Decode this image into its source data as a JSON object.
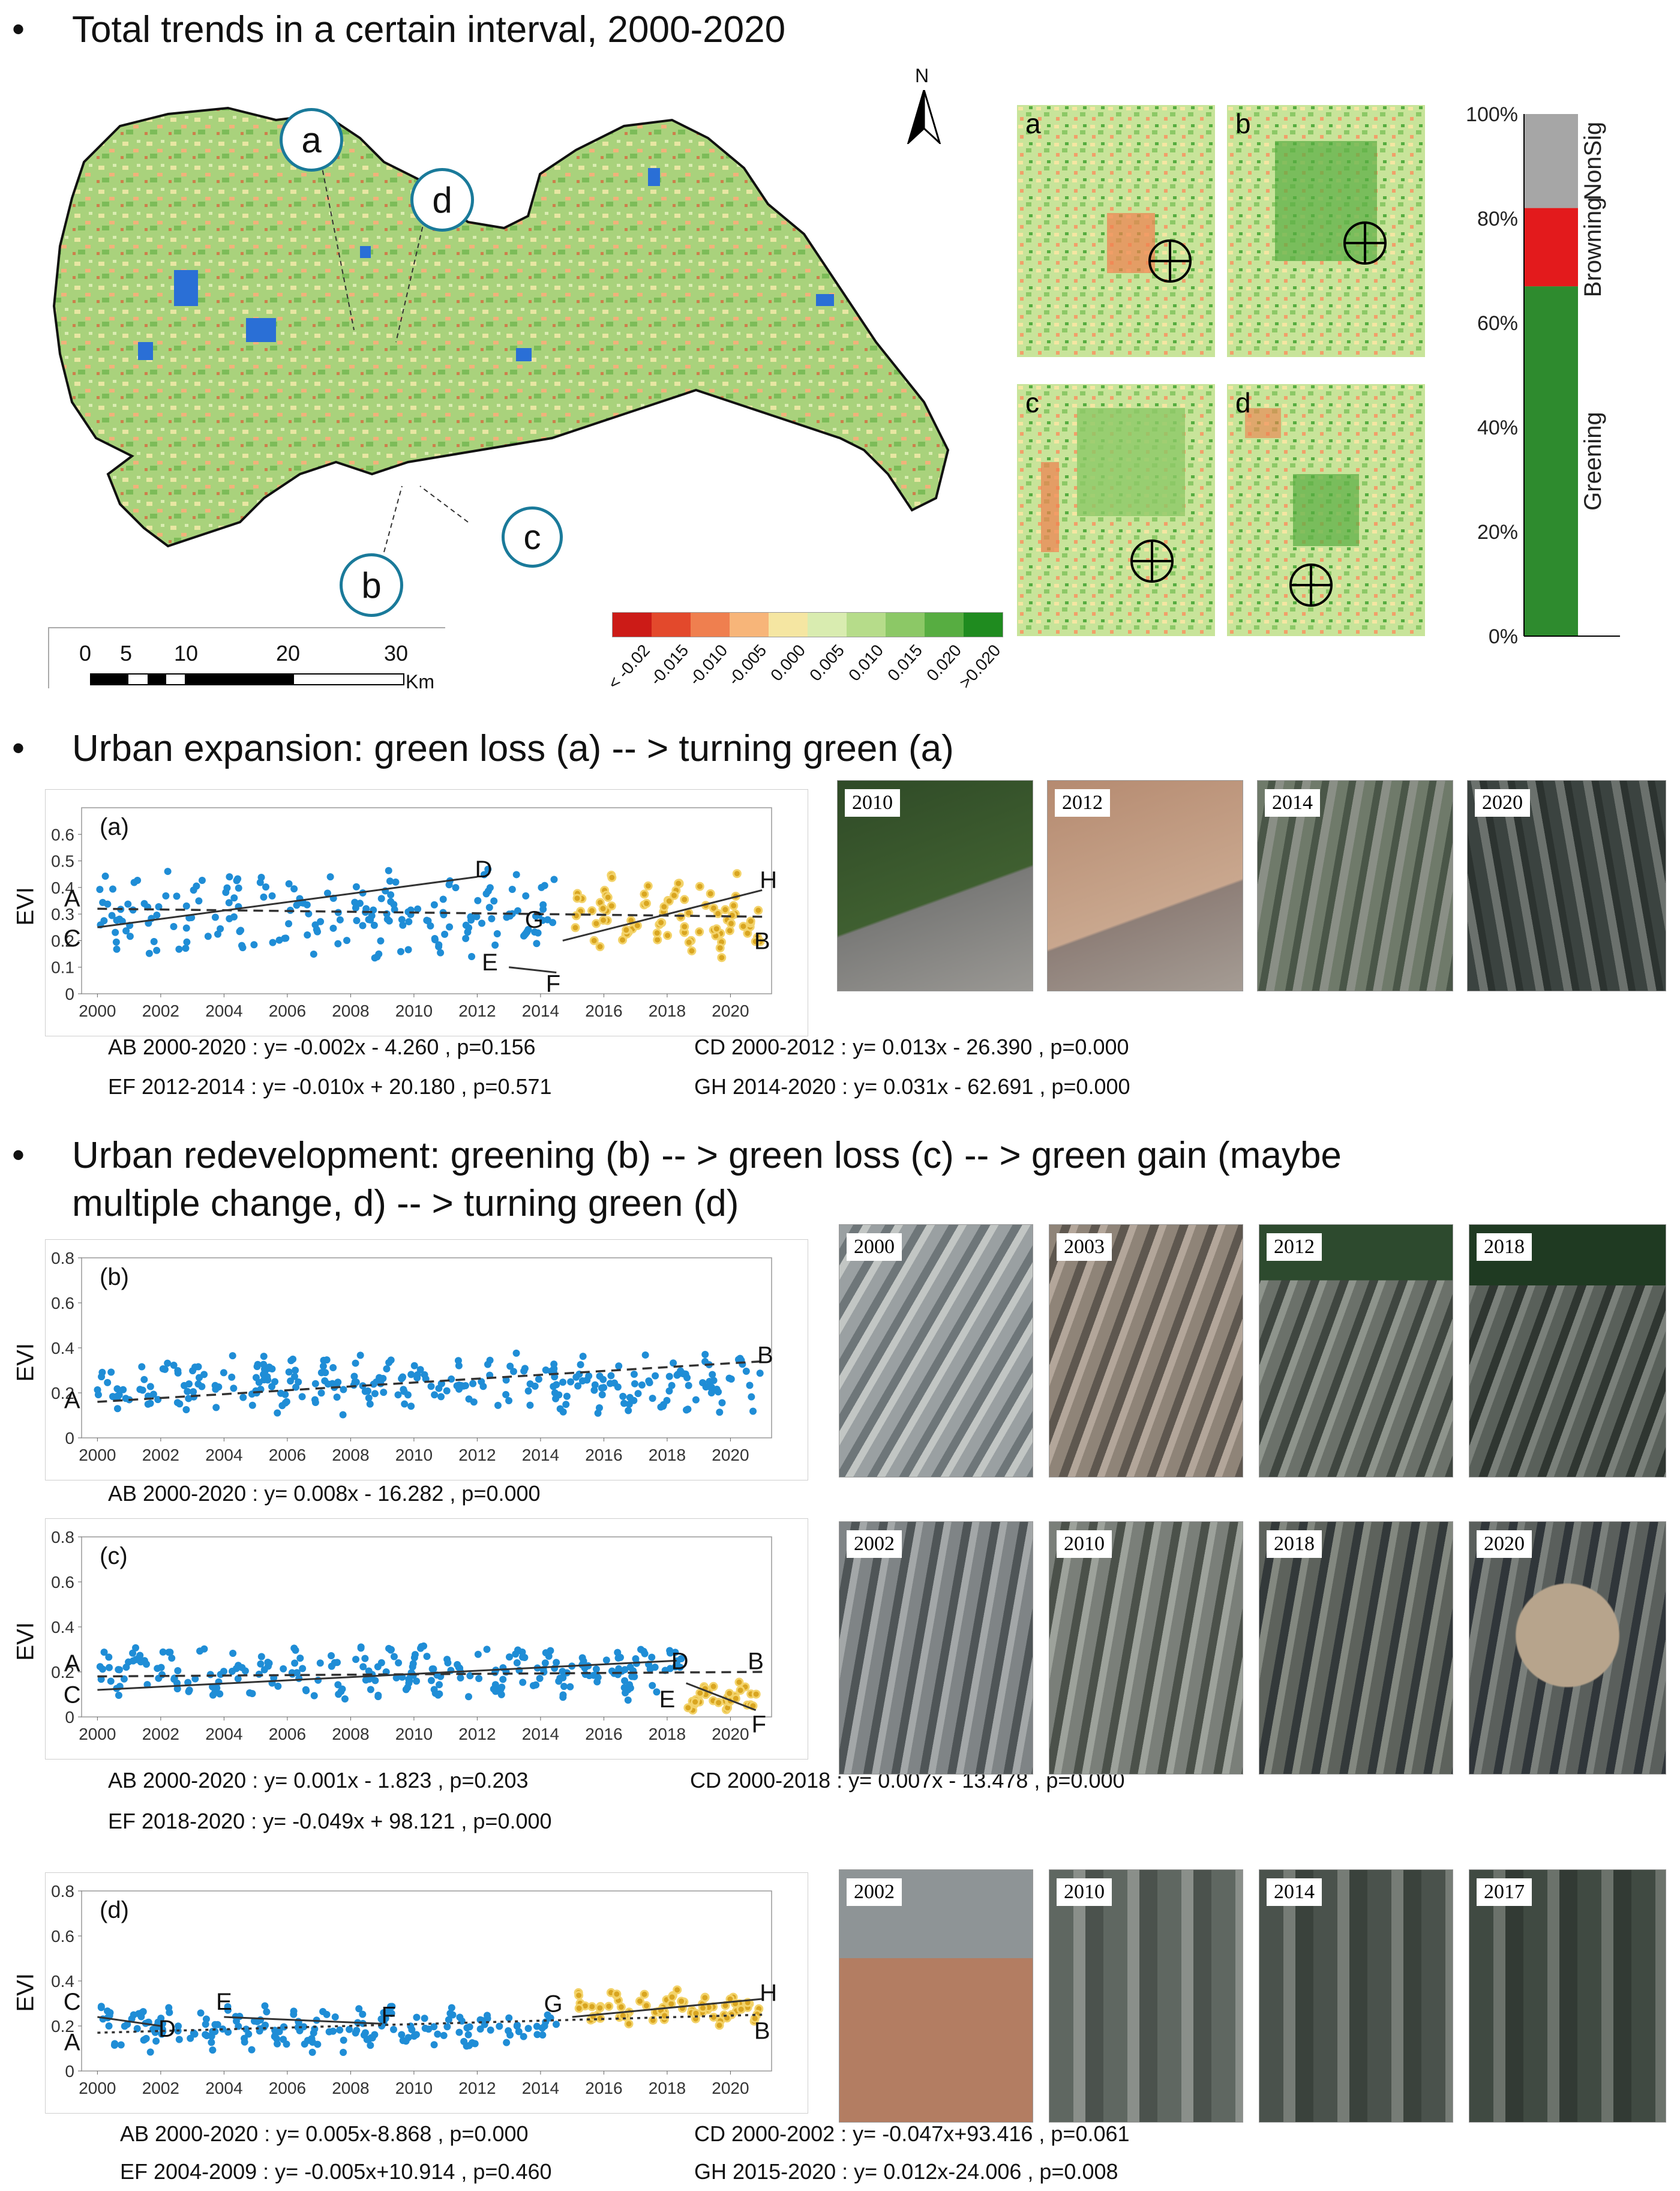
{
  "sections": {
    "s1_title": "Total trends in a certain interval, 2000-2020",
    "s2_title": "Urban expansion:  green loss (a) -- >  turning green (a)",
    "s3_title_line1": "Urban redevelopment: greening (b) -- >  green loss (c) -- >  green gain (maybe",
    "s3_title_line2": "multiple change, d) -- > turning green (d)"
  },
  "map": {
    "north": "N",
    "callouts": [
      "a",
      "d",
      "c",
      "b"
    ],
    "scale_ticks": [
      "0",
      "5",
      "10",
      "20",
      "30"
    ],
    "scale_unit": "Km",
    "zoom_labels": [
      "a",
      "b",
      "c",
      "d"
    ],
    "legend_labels": [
      "< -0.02",
      "-0.015",
      "-0.010",
      "-0.005",
      "0.000",
      "0.005",
      "0.010",
      "0.015",
      "0.020",
      ">0.020"
    ],
    "legend_colors": [
      "#cc1b17",
      "#e3492c",
      "#ef7f4f",
      "#f7b579",
      "#f5e6a2",
      "#d9ecb0",
      "#b6dc8a",
      "#8cc866",
      "#57ad41",
      "#1f8b1f"
    ]
  },
  "chart_data": [
    {
      "type": "bar",
      "stacked": true,
      "categories": [
        "Greening",
        "Browning",
        "NonSig"
      ],
      "values": [
        67,
        15,
        18
      ],
      "colors": [
        "#2e8b2e",
        "#e31a1c",
        "#a6a6a6"
      ],
      "ylim": [
        0,
        100
      ],
      "yticks": [
        "0%",
        "20%",
        "40%",
        "60%",
        "80%",
        "100%"
      ]
    },
    {
      "type": "scatter",
      "panel": "(a)",
      "ylabel": "EVI",
      "ylim": [
        0,
        0.7
      ],
      "yticks": [
        "0",
        "0.1",
        "0.2",
        "0.3",
        "0.4",
        "0.5",
        "0.6"
      ],
      "xticks": [
        "2000",
        "2002",
        "2004",
        "2006",
        "2008",
        "2010",
        "2012",
        "2014",
        "2016",
        "2018",
        "2020"
      ],
      "xlim": [
        1999.5,
        2021.3
      ],
      "lines": [
        {
          "from": "A",
          "to": "B",
          "x": [
            2000,
            2021
          ],
          "y": [
            0.32,
            0.29
          ],
          "style": "dashed"
        },
        {
          "from": "C",
          "to": "D",
          "x": [
            2000,
            2012
          ],
          "y": [
            0.25,
            0.44
          ],
          "style": "solid"
        },
        {
          "from": "E",
          "to": "F",
          "x": [
            2013,
            2014.5
          ],
          "y": [
            0.1,
            0.08
          ],
          "style": "solid"
        },
        {
          "from": "G",
          "to": "H",
          "x": [
            2014.7,
            2021
          ],
          "y": [
            0.2,
            0.39
          ],
          "style": "solid"
        }
      ],
      "point_labels": [
        {
          "text": "A",
          "x": 1999.2,
          "y": 0.36
        },
        {
          "text": "C",
          "x": 1999.2,
          "y": 0.21
        },
        {
          "text": "D",
          "x": 2012.2,
          "y": 0.47
        },
        {
          "text": "E",
          "x": 2012.4,
          "y": 0.12
        },
        {
          "text": "F",
          "x": 2014.4,
          "y": 0.04
        },
        {
          "text": "G",
          "x": 2013.8,
          "y": 0.28
        },
        {
          "text": "H",
          "x": 2021.2,
          "y": 0.43
        },
        {
          "text": "B",
          "x": 2021.0,
          "y": 0.2
        }
      ],
      "series": [
        {
          "color": "#1f8dd6",
          "x_range": [
            2000,
            2014.5
          ],
          "mean": 0.3,
          "spread": 0.13
        },
        {
          "color": "#d9a520",
          "x_range": [
            2014.7,
            2021
          ],
          "mean": 0.3,
          "spread": 0.12
        }
      ],
      "equations": [
        "AB 2000-2020 :  y= -0.002x - 4.260 ,   p=0.156",
        "CD 2000-2012 :  y=  0.013x - 26.390 , p=0.000",
        "EF 2012-2014 :  y= -0.010x + 20.180 , p=0.571",
        "GH 2014-2020 :  y=  0.031x - 62.691 , p=0.000"
      ],
      "photo_years": [
        "2010",
        "2012",
        "2014",
        "2020"
      ]
    },
    {
      "type": "scatter",
      "panel": "(b)",
      "ylabel": "EVI",
      "ylim": [
        0,
        0.8
      ],
      "yticks": [
        "0",
        "0.2",
        "0.4",
        "0.6",
        "0.8"
      ],
      "xticks": [
        "2000",
        "2002",
        "2004",
        "2006",
        "2008",
        "2010",
        "2012",
        "2014",
        "2016",
        "2018",
        "2020"
      ],
      "xlim": [
        1999.5,
        2021.3
      ],
      "lines": [
        {
          "from": "A",
          "to": "B",
          "x": [
            2000,
            2021
          ],
          "y": [
            0.16,
            0.34
          ],
          "style": "dashed"
        }
      ],
      "point_labels": [
        {
          "text": "A",
          "x": 1999.2,
          "y": 0.17
        },
        {
          "text": "B",
          "x": 2021.1,
          "y": 0.37
        }
      ],
      "series": [
        {
          "color": "#1f8dd6",
          "x_range": [
            2000,
            2021
          ],
          "mean": 0.24,
          "spread": 0.1
        }
      ],
      "equations": [
        "AB 2000-2020 :  y= 0.008x - 16.282 , p=0.000"
      ],
      "photo_years": [
        "2000",
        "2003",
        "2012",
        "2018"
      ]
    },
    {
      "type": "scatter",
      "panel": "(c)",
      "ylabel": "EVI",
      "ylim": [
        0,
        0.8
      ],
      "yticks": [
        "0",
        "0.2",
        "0.4",
        "0.6",
        "0.8"
      ],
      "xticks": [
        "2000",
        "2002",
        "2004",
        "2006",
        "2008",
        "2010",
        "2012",
        "2014",
        "2016",
        "2018",
        "2020"
      ],
      "xlim": [
        1999.5,
        2021.3
      ],
      "lines": [
        {
          "from": "A",
          "to": "B",
          "x": [
            2000,
            2021
          ],
          "y": [
            0.18,
            0.2
          ],
          "style": "dashed"
        },
        {
          "from": "C",
          "to": "D",
          "x": [
            2000,
            2018.3
          ],
          "y": [
            0.12,
            0.25
          ],
          "style": "solid"
        },
        {
          "from": "E",
          "to": "F",
          "x": [
            2018.6,
            2020.8
          ],
          "y": [
            0.15,
            0.03
          ],
          "style": "solid"
        }
      ],
      "point_labels": [
        {
          "text": "A",
          "x": 1999.2,
          "y": 0.24
        },
        {
          "text": "C",
          "x": 1999.2,
          "y": 0.1
        },
        {
          "text": "D",
          "x": 2018.4,
          "y": 0.25
        },
        {
          "text": "B",
          "x": 2020.8,
          "y": 0.25
        },
        {
          "text": "E",
          "x": 2018.0,
          "y": 0.08
        },
        {
          "text": "F",
          "x": 2020.9,
          "y": -0.03
        }
      ],
      "series": [
        {
          "color": "#1f8dd6",
          "x_range": [
            2000,
            2018.5
          ],
          "mean": 0.2,
          "spread": 0.09
        },
        {
          "color": "#d9a520",
          "x_range": [
            2018.6,
            2021
          ],
          "mean": 0.09,
          "spread": 0.05
        }
      ],
      "equations": [
        "AB 2000-2020 :  y=  0.001x - 1.823 , p=0.203",
        "CD 2000-2018 :  y= 0.007x - 13.478 , p=0.000",
        "EF 2018-2020 :  y= -0.049x + 98.121 , p=0.000"
      ],
      "photo_years": [
        "2002",
        "2010",
        "2018",
        "2020"
      ]
    },
    {
      "type": "scatter",
      "panel": "(d)",
      "ylabel": "EVI",
      "ylim": [
        0,
        0.8
      ],
      "yticks": [
        "0",
        "0.2",
        "0.4",
        "0.6",
        "0.8"
      ],
      "xticks": [
        "2000",
        "2002",
        "2004",
        "2006",
        "2008",
        "2010",
        "2012",
        "2014",
        "2016",
        "2018",
        "2020"
      ],
      "xlim": [
        1999.5,
        2021.3
      ],
      "lines": [
        {
          "from": "A",
          "to": "B",
          "x": [
            2000,
            2021
          ],
          "y": [
            0.17,
            0.25
          ],
          "style": "dotted"
        },
        {
          "from": "C",
          "to": "D",
          "x": [
            2000,
            2002
          ],
          "y": [
            0.24,
            0.2
          ],
          "style": "solid"
        },
        {
          "from": "E",
          "to": "F",
          "x": [
            2004,
            2009
          ],
          "y": [
            0.24,
            0.21
          ],
          "style": "solid"
        },
        {
          "from": "G",
          "to": "H",
          "x": [
            2015,
            2021
          ],
          "y": [
            0.24,
            0.32
          ],
          "style": "solid"
        }
      ],
      "point_labels": [
        {
          "text": "C",
          "x": 1999.2,
          "y": 0.31
        },
        {
          "text": "A",
          "x": 1999.2,
          "y": 0.13
        },
        {
          "text": "D",
          "x": 2002.2,
          "y": 0.19
        },
        {
          "text": "E",
          "x": 2004.0,
          "y": 0.31
        },
        {
          "text": "F",
          "x": 2009.2,
          "y": 0.25
        },
        {
          "text": "G",
          "x": 2014.4,
          "y": 0.3
        },
        {
          "text": "H",
          "x": 2021.2,
          "y": 0.35
        },
        {
          "text": "B",
          "x": 2021.0,
          "y": 0.18
        }
      ],
      "series": [
        {
          "color": "#1f8dd6",
          "x_range": [
            2000,
            2014.5
          ],
          "mean": 0.19,
          "spread": 0.08
        },
        {
          "color": "#d9a520",
          "x_range": [
            2015,
            2021
          ],
          "mean": 0.28,
          "spread": 0.06
        }
      ],
      "equations": [
        "AB 2000-2020 :  y= 0.005x-8.868 , p=0.000",
        "CD 2000-2002 :  y= -0.047x+93.416 , p=0.061",
        "EF 2004-2009 :  y= -0.005x+10.914 , p=0.460",
        "GH 2015-2020 :  y= 0.012x-24.006 , p=0.008"
      ],
      "photo_years": [
        "2002",
        "2010",
        "2014",
        "2017"
      ]
    }
  ]
}
